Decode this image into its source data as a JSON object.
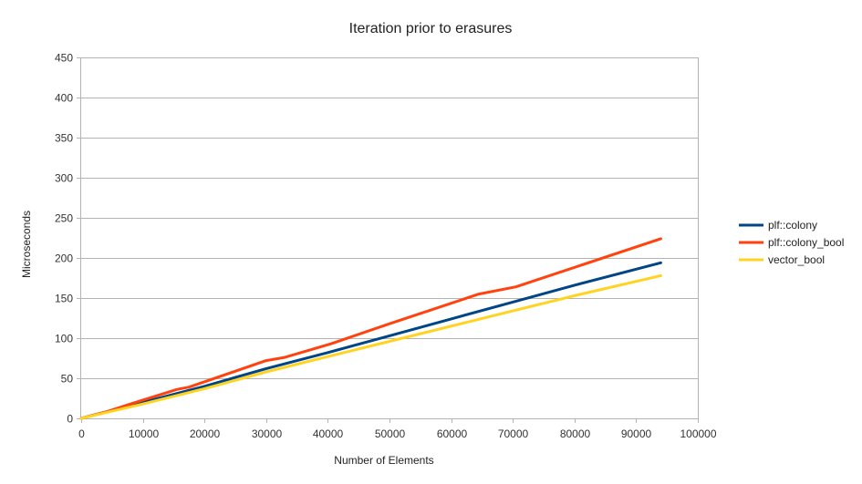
{
  "chart_data": {
    "type": "line",
    "title": "Iteration prior to erasures",
    "xlabel": "Number of Elements",
    "ylabel": "Microseconds",
    "xlim": [
      0,
      100000
    ],
    "ylim": [
      0,
      450
    ],
    "xticks": [
      0,
      10000,
      20000,
      30000,
      40000,
      50000,
      60000,
      70000,
      80000,
      90000,
      100000
    ],
    "yticks": [
      0,
      50,
      100,
      150,
      200,
      250,
      300,
      350,
      400,
      450
    ],
    "grid": true,
    "legend_position": "right",
    "series": [
      {
        "name": "plf::colony",
        "color": "#004586",
        "points": [
          [
            0,
            0
          ],
          [
            3000,
            6
          ],
          [
            8000,
            16
          ],
          [
            16000,
            32
          ],
          [
            20000,
            40
          ],
          [
            30000,
            62
          ],
          [
            40000,
            82
          ],
          [
            50000,
            103
          ],
          [
            60000,
            124
          ],
          [
            70000,
            145
          ],
          [
            80000,
            166
          ],
          [
            94000,
            194
          ]
        ]
      },
      {
        "name": "plf::colony_bool",
        "color": "#ff420e",
        "points": [
          [
            0,
            0
          ],
          [
            4000,
            8
          ],
          [
            8000,
            18
          ],
          [
            15500,
            36
          ],
          [
            17500,
            39
          ],
          [
            30000,
            72
          ],
          [
            33000,
            76
          ],
          [
            40500,
            93
          ],
          [
            50000,
            118
          ],
          [
            64500,
            155
          ],
          [
            70500,
            164
          ],
          [
            94000,
            224
          ]
        ]
      },
      {
        "name": "vector_bool",
        "color": "#ffd320",
        "points": [
          [
            0,
            0
          ],
          [
            5000,
            9
          ],
          [
            10000,
            18
          ],
          [
            20000,
            37
          ],
          [
            30000,
            58
          ],
          [
            40000,
            77
          ],
          [
            50000,
            96
          ],
          [
            60000,
            115
          ],
          [
            70000,
            134
          ],
          [
            80000,
            153
          ],
          [
            94000,
            178
          ]
        ]
      }
    ]
  }
}
